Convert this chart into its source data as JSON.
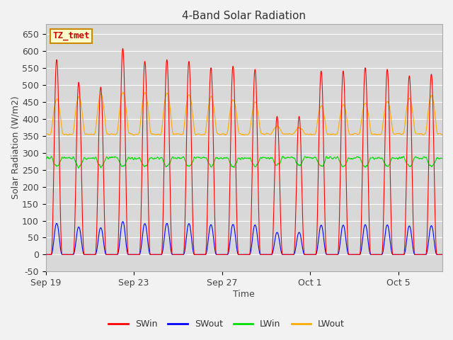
{
  "title": "4-Band Solar Radiation",
  "xlabel": "Time",
  "ylabel": "Solar Radiation (W/m2)",
  "ylim": [
    -50,
    680
  ],
  "background_color": "#d8d8d8",
  "plot_bg_color": "#d8d8d8",
  "tz_label": "TZ_tmet",
  "tz_bg": "#ffffcc",
  "tz_border": "#cc8800",
  "tz_text_color": "#cc0000",
  "colors": {
    "SWin": "#ff0000",
    "SWout": "#0000ff",
    "LWin": "#00dd00",
    "LWout": "#ffaa00"
  },
  "legend_entries": [
    "SWin",
    "SWout",
    "LWin",
    "LWout"
  ],
  "x_ticks": [
    "Sep 19",
    "Sep 23",
    "Sep 27",
    "Oct 1",
    "Oct 5"
  ],
  "x_tick_days": [
    0,
    4,
    8,
    12,
    16
  ],
  "yticks": [
    -50,
    0,
    50,
    100,
    150,
    200,
    250,
    300,
    350,
    400,
    450,
    500,
    550,
    600,
    650
  ],
  "num_days": 18,
  "dt_hours": 0.25
}
